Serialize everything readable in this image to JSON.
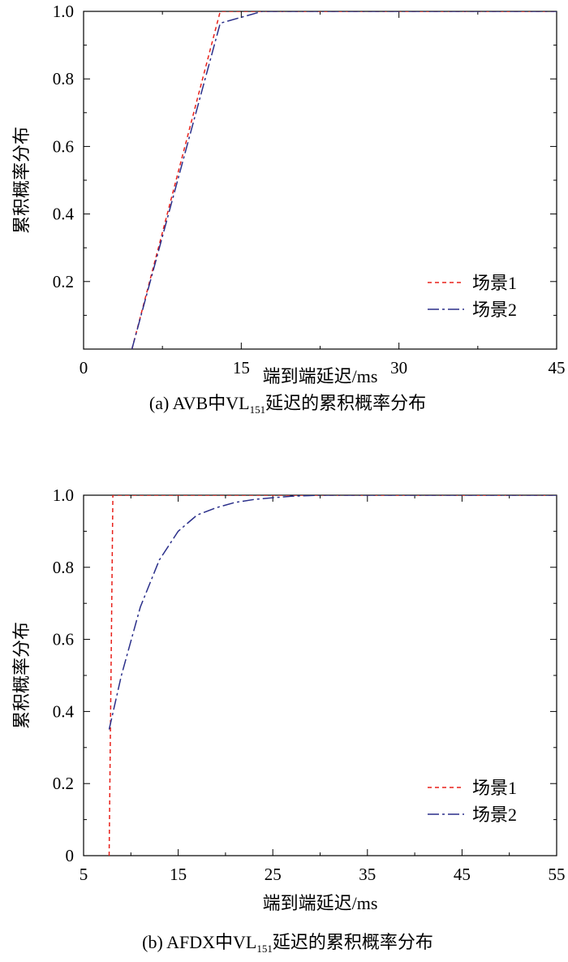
{
  "chart_data": [
    {
      "type": "line",
      "caption": "(a) AVB中VL151延迟的累积概率分布",
      "caption_parts": {
        "prefix": "(a) AVB中VL",
        "subscript": "151",
        "suffix": "延迟的累积概率分布"
      },
      "xlabel": "端到端延迟/ms",
      "ylabel": "累积概率分布",
      "xlim": [
        0,
        45
      ],
      "ylim": [
        0,
        1.0
      ],
      "xticks": [
        0,
        15,
        30,
        45
      ],
      "yticks": [
        0.2,
        0.4,
        0.6,
        0.8,
        1.0
      ],
      "grid": false,
      "legend_position": "bottom-right",
      "series": [
        {
          "name": "场景1",
          "color": "#e8201a",
          "dash": "dashed",
          "x": [
            4.6,
            13.0,
            17.0,
            45.0
          ],
          "y": [
            0.0,
            1.0,
            1.0,
            1.0
          ]
        },
        {
          "name": "场景2",
          "color": "#2a2f8a",
          "dash": "dashdot",
          "x": [
            4.6,
            13.0,
            17.0,
            45.0
          ],
          "y": [
            0.0,
            0.965,
            1.0,
            1.0
          ]
        }
      ]
    },
    {
      "type": "line",
      "caption": "(b) AFDX中VL151延迟的累积概率分布",
      "caption_parts": {
        "prefix": "(b) AFDX中VL",
        "subscript": "151",
        "suffix": "延迟的累积概率分布"
      },
      "xlabel": "端到端延迟/ms",
      "ylabel": "累积概率分布",
      "xlim": [
        5,
        55
      ],
      "ylim": [
        0,
        1.0
      ],
      "xticks": [
        5,
        15,
        25,
        35,
        45,
        55
      ],
      "yticks": [
        0,
        0.2,
        0.4,
        0.6,
        0.8,
        1.0
      ],
      "grid": false,
      "legend_position": "bottom-right",
      "series": [
        {
          "name": "场景1",
          "color": "#e8201a",
          "dash": "dashed",
          "x": [
            7.7,
            8.1,
            55.0
          ],
          "y": [
            0.0,
            1.0,
            1.0
          ]
        },
        {
          "name": "场景2",
          "color": "#2a2f8a",
          "dash": "dashdot",
          "x": [
            7.7,
            9.0,
            11.0,
            13.0,
            15.0,
            17.0,
            19.0,
            21.0,
            23.0,
            25.0,
            27.0,
            30.0,
            55.0
          ],
          "y": [
            0.35,
            0.5,
            0.69,
            0.82,
            0.9,
            0.945,
            0.965,
            0.98,
            0.988,
            0.993,
            0.997,
            1.0,
            1.0
          ]
        }
      ]
    }
  ]
}
